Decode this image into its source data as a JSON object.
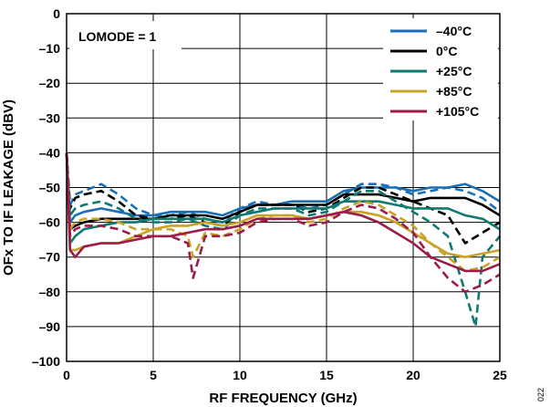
{
  "chart_data": {
    "type": "line",
    "xlabel": "RF FREQUENCY (GHz)",
    "ylabel": "OFx TO IF LEAKAGE (dBV)",
    "xlim": [
      0,
      25
    ],
    "ylim": [
      -100,
      0
    ],
    "x_ticks": [
      0,
      5,
      10,
      15,
      20,
      25
    ],
    "y_ticks": [
      0,
      -10,
      -20,
      -30,
      -40,
      -50,
      -60,
      -70,
      -80,
      -90,
      -100
    ],
    "x_tick_labels": [
      "0",
      "5",
      "10",
      "15",
      "20",
      "25"
    ],
    "y_tick_labels": [
      "0",
      "–10",
      "–20",
      "–30",
      "–40",
      "–50",
      "–60",
      "–70",
      "–80",
      "–90",
      "–100"
    ],
    "grid": true,
    "legend_position": "top-right",
    "annotation": "LOMODE = 1",
    "figure_id": "022",
    "line_styles": [
      "solid",
      "dashed"
    ],
    "series": [
      {
        "name": "–40°C",
        "color": "#1a6fb5",
        "solid": [
          [
            0,
            -40
          ],
          [
            0.2,
            -60
          ],
          [
            0.5,
            -58
          ],
          [
            1,
            -57
          ],
          [
            2,
            -56
          ],
          [
            3,
            -57
          ],
          [
            4,
            -58
          ],
          [
            5,
            -58
          ],
          [
            6,
            -57
          ],
          [
            7,
            -57
          ],
          [
            8,
            -57
          ],
          [
            9,
            -58
          ],
          [
            10,
            -56
          ],
          [
            11,
            -55
          ],
          [
            12,
            -55
          ],
          [
            13,
            -54
          ],
          [
            14,
            -54
          ],
          [
            15,
            -54
          ],
          [
            16,
            -51
          ],
          [
            17,
            -50
          ],
          [
            18,
            -50
          ],
          [
            19,
            -50
          ],
          [
            20,
            -51
          ],
          [
            21,
            -50
          ],
          [
            22,
            -50
          ],
          [
            23,
            -49
          ],
          [
            24,
            -51
          ],
          [
            25,
            -54
          ]
        ],
        "dashed": [
          [
            0,
            -40
          ],
          [
            0.2,
            -55
          ],
          [
            0.5,
            -52
          ],
          [
            1,
            -51
          ],
          [
            2,
            -49
          ],
          [
            3,
            -52
          ],
          [
            4,
            -56
          ],
          [
            5,
            -58
          ],
          [
            6,
            -58
          ],
          [
            7,
            -57
          ],
          [
            8,
            -59
          ],
          [
            9,
            -60
          ],
          [
            10,
            -56
          ],
          [
            11,
            -54
          ],
          [
            12,
            -55
          ],
          [
            13,
            -55
          ],
          [
            14,
            -56
          ],
          [
            15,
            -55
          ],
          [
            16,
            -52
          ],
          [
            17,
            -49
          ],
          [
            18,
            -49
          ],
          [
            19,
            -50
          ],
          [
            20,
            -52
          ],
          [
            21,
            -51
          ],
          [
            22,
            -50
          ],
          [
            23,
            -51
          ],
          [
            24,
            -53
          ],
          [
            25,
            -57
          ]
        ]
      },
      {
        "name": "0°C",
        "color": "#000000",
        "solid": [
          [
            0,
            -40
          ],
          [
            0.2,
            -62
          ],
          [
            0.5,
            -61
          ],
          [
            1,
            -60
          ],
          [
            2,
            -59
          ],
          [
            3,
            -59
          ],
          [
            4,
            -59
          ],
          [
            5,
            -59
          ],
          [
            6,
            -58
          ],
          [
            7,
            -58
          ],
          [
            8,
            -58
          ],
          [
            9,
            -59
          ],
          [
            10,
            -57
          ],
          [
            11,
            -55
          ],
          [
            12,
            -55
          ],
          [
            13,
            -55
          ],
          [
            14,
            -55
          ],
          [
            15,
            -55
          ],
          [
            16,
            -52
          ],
          [
            17,
            -52
          ],
          [
            18,
            -52
          ],
          [
            19,
            -53
          ],
          [
            20,
            -54
          ],
          [
            21,
            -53
          ],
          [
            22,
            -53
          ],
          [
            23,
            -53
          ],
          [
            24,
            -55
          ],
          [
            25,
            -58
          ]
        ],
        "dashed": [
          [
            0,
            -40
          ],
          [
            0.2,
            -56
          ],
          [
            0.5,
            -53
          ],
          [
            1,
            -52
          ],
          [
            2,
            -51
          ],
          [
            3,
            -54
          ],
          [
            4,
            -58
          ],
          [
            5,
            -59
          ],
          [
            6,
            -59
          ],
          [
            7,
            -58
          ],
          [
            8,
            -60
          ],
          [
            9,
            -61
          ],
          [
            10,
            -57
          ],
          [
            11,
            -55
          ],
          [
            12,
            -55
          ],
          [
            13,
            -55
          ],
          [
            14,
            -57
          ],
          [
            15,
            -56
          ],
          [
            16,
            -53
          ],
          [
            17,
            -50
          ],
          [
            18,
            -50
          ],
          [
            19,
            -52
          ],
          [
            20,
            -54
          ],
          [
            21,
            -56
          ],
          [
            22,
            -58
          ],
          [
            23,
            -66
          ],
          [
            24,
            -63
          ],
          [
            25,
            -60
          ]
        ]
      },
      {
        "name": "+25°C",
        "color": "#0e7a72",
        "solid": [
          [
            0,
            -40
          ],
          [
            0.2,
            -66
          ],
          [
            0.5,
            -64
          ],
          [
            1,
            -62
          ],
          [
            2,
            -61
          ],
          [
            3,
            -60
          ],
          [
            4,
            -60
          ],
          [
            5,
            -59
          ],
          [
            6,
            -59
          ],
          [
            7,
            -59
          ],
          [
            8,
            -59
          ],
          [
            9,
            -60
          ],
          [
            10,
            -58
          ],
          [
            11,
            -57
          ],
          [
            12,
            -56
          ],
          [
            13,
            -56
          ],
          [
            14,
            -56
          ],
          [
            15,
            -56
          ],
          [
            16,
            -54
          ],
          [
            17,
            -54
          ],
          [
            18,
            -54
          ],
          [
            19,
            -55
          ],
          [
            20,
            -56
          ],
          [
            21,
            -56
          ],
          [
            22,
            -56
          ],
          [
            23,
            -58
          ],
          [
            24,
            -59
          ],
          [
            25,
            -62
          ]
        ],
        "dashed": [
          [
            0,
            -40
          ],
          [
            0.2,
            -58
          ],
          [
            0.5,
            -56
          ],
          [
            1,
            -55
          ],
          [
            2,
            -54
          ],
          [
            3,
            -56
          ],
          [
            4,
            -59
          ],
          [
            5,
            -60
          ],
          [
            6,
            -60
          ],
          [
            7,
            -59
          ],
          [
            8,
            -61
          ],
          [
            9,
            -62
          ],
          [
            10,
            -58
          ],
          [
            11,
            -56
          ],
          [
            12,
            -56
          ],
          [
            13,
            -56
          ],
          [
            14,
            -58
          ],
          [
            15,
            -57
          ],
          [
            16,
            -54
          ],
          [
            17,
            -51
          ],
          [
            18,
            -51
          ],
          [
            19,
            -54
          ],
          [
            20,
            -57
          ],
          [
            21,
            -60
          ],
          [
            22,
            -64
          ],
          [
            23,
            -80
          ],
          [
            23.6,
            -90
          ],
          [
            24,
            -70
          ],
          [
            25,
            -64
          ]
        ]
      },
      {
        "name": "+85°C",
        "color": "#c9a227",
        "solid": [
          [
            0,
            -40
          ],
          [
            0.2,
            -68
          ],
          [
            0.5,
            -68
          ],
          [
            1,
            -67
          ],
          [
            2,
            -66
          ],
          [
            3,
            -66
          ],
          [
            4,
            -64
          ],
          [
            5,
            -62
          ],
          [
            6,
            -61
          ],
          [
            7,
            -61
          ],
          [
            8,
            -60
          ],
          [
            9,
            -61
          ],
          [
            10,
            -60
          ],
          [
            11,
            -58
          ],
          [
            12,
            -58
          ],
          [
            13,
            -58
          ],
          [
            14,
            -59
          ],
          [
            15,
            -58
          ],
          [
            16,
            -57
          ],
          [
            17,
            -57
          ],
          [
            18,
            -58
          ],
          [
            19,
            -60
          ],
          [
            20,
            -63
          ],
          [
            21,
            -66
          ],
          [
            22,
            -69
          ],
          [
            23,
            -70
          ],
          [
            24,
            -69
          ],
          [
            25,
            -68
          ]
        ],
        "dashed": [
          [
            0,
            -40
          ],
          [
            0.2,
            -62
          ],
          [
            0.5,
            -60
          ],
          [
            1,
            -59
          ],
          [
            2,
            -59
          ],
          [
            3,
            -60
          ],
          [
            4,
            -62
          ],
          [
            5,
            -62
          ],
          [
            6,
            -62
          ],
          [
            7,
            -64
          ],
          [
            7.3,
            -70
          ],
          [
            8,
            -63
          ],
          [
            9,
            -64
          ],
          [
            10,
            -62
          ],
          [
            11,
            -59
          ],
          [
            12,
            -58
          ],
          [
            13,
            -58
          ],
          [
            14,
            -60
          ],
          [
            15,
            -59
          ],
          [
            16,
            -56
          ],
          [
            17,
            -54
          ],
          [
            18,
            -55
          ],
          [
            19,
            -58
          ],
          [
            20,
            -61
          ],
          [
            21,
            -66
          ],
          [
            22,
            -70
          ],
          [
            23,
            -74
          ],
          [
            24,
            -73
          ],
          [
            25,
            -70
          ]
        ]
      },
      {
        "name": "+105°C",
        "color": "#9b1c4a",
        "solid": [
          [
            0,
            -40
          ],
          [
            0.2,
            -68
          ],
          [
            0.5,
            -70
          ],
          [
            1,
            -67
          ],
          [
            2,
            -66
          ],
          [
            3,
            -66
          ],
          [
            4,
            -65
          ],
          [
            5,
            -64
          ],
          [
            6,
            -64
          ],
          [
            7,
            -63
          ],
          [
            8,
            -62
          ],
          [
            9,
            -62
          ],
          [
            10,
            -61
          ],
          [
            11,
            -59
          ],
          [
            12,
            -59
          ],
          [
            13,
            -59
          ],
          [
            14,
            -59
          ],
          [
            15,
            -58
          ],
          [
            16,
            -57
          ],
          [
            17,
            -58
          ],
          [
            18,
            -60
          ],
          [
            19,
            -63
          ],
          [
            20,
            -66
          ],
          [
            21,
            -70
          ],
          [
            22,
            -72
          ],
          [
            23,
            -74
          ],
          [
            24,
            -74
          ],
          [
            25,
            -72
          ]
        ],
        "dashed": [
          [
            0,
            -40
          ],
          [
            0.2,
            -64
          ],
          [
            0.5,
            -62
          ],
          [
            1,
            -61
          ],
          [
            2,
            -61
          ],
          [
            3,
            -62
          ],
          [
            4,
            -64
          ],
          [
            5,
            -64
          ],
          [
            6,
            -64
          ],
          [
            7,
            -66
          ],
          [
            7.3,
            -76
          ],
          [
            8,
            -64
          ],
          [
            9,
            -64
          ],
          [
            10,
            -63
          ],
          [
            11,
            -60
          ],
          [
            12,
            -59
          ],
          [
            13,
            -59
          ],
          [
            14,
            -61
          ],
          [
            15,
            -60
          ],
          [
            16,
            -57
          ],
          [
            17,
            -55
          ],
          [
            18,
            -56
          ],
          [
            19,
            -59
          ],
          [
            20,
            -63
          ],
          [
            21,
            -70
          ],
          [
            22,
            -76
          ],
          [
            23,
            -80
          ],
          [
            24,
            -78
          ],
          [
            25,
            -75
          ]
        ]
      }
    ]
  }
}
